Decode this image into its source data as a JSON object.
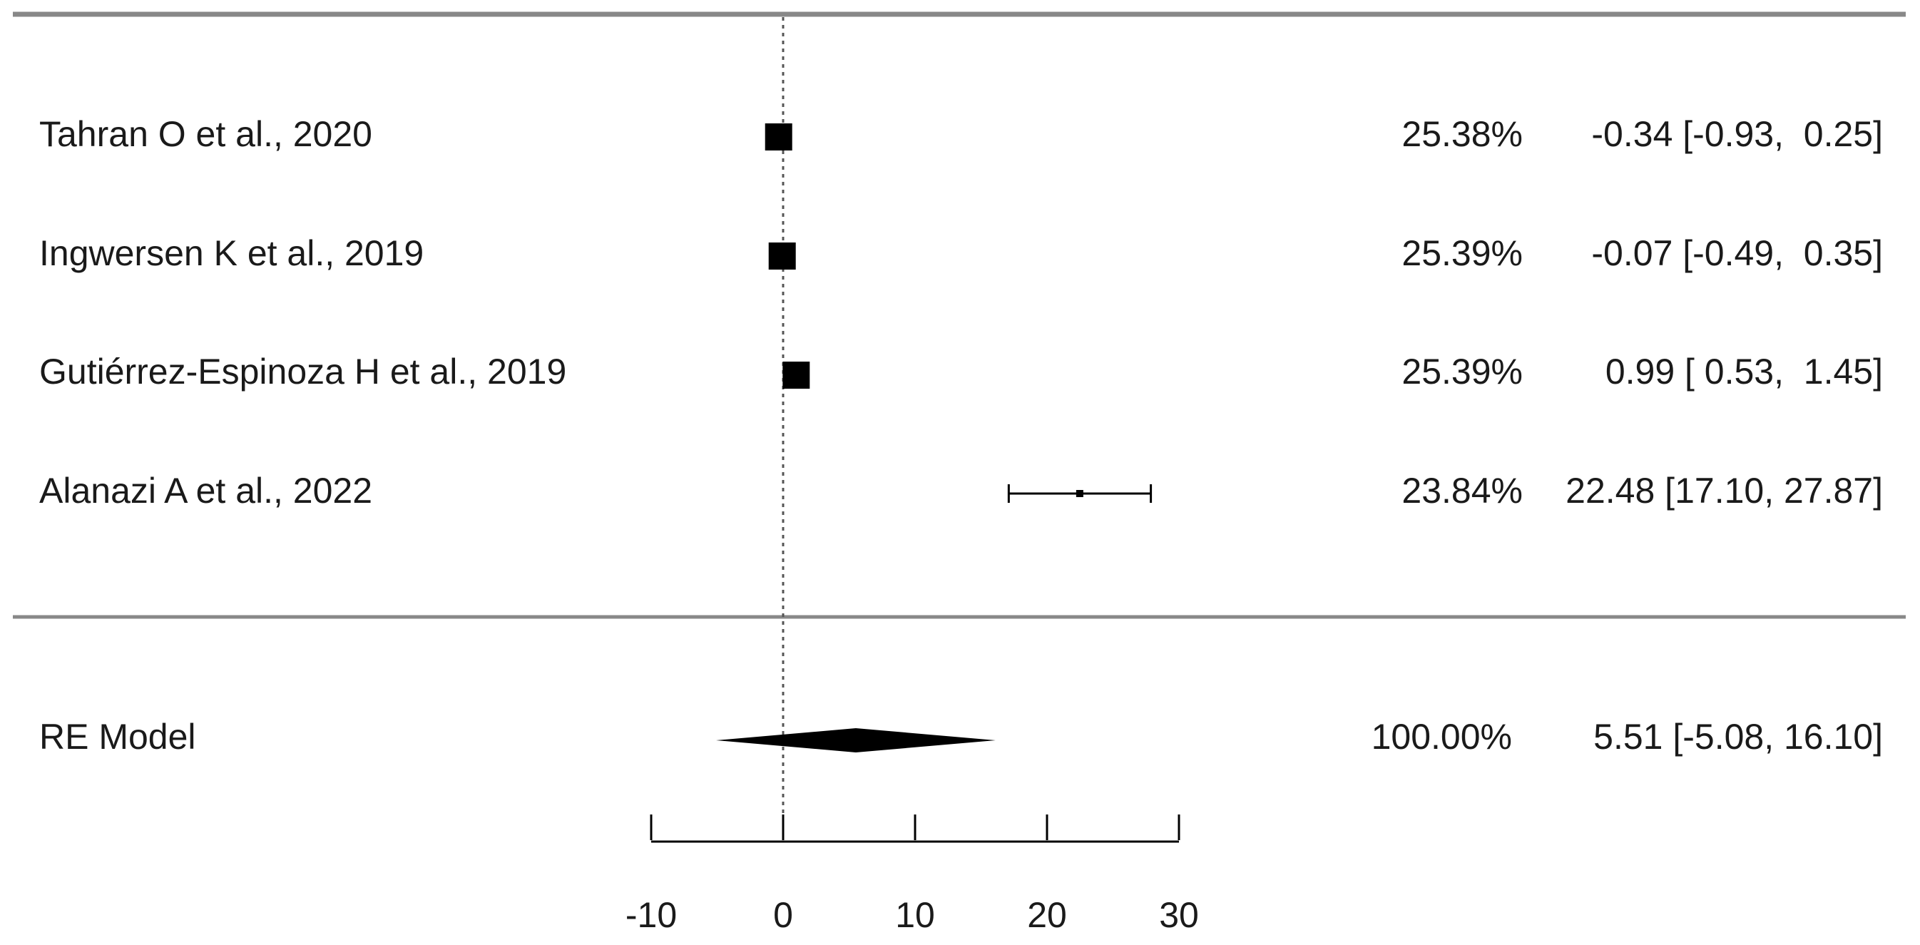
{
  "chart_data": {
    "type": "forest",
    "title": "",
    "xlabel": "",
    "ylabel": "",
    "xlim": [
      -10,
      30
    ],
    "x_ticks": [
      -10,
      0,
      10,
      20,
      30
    ],
    "x_tick_labels": [
      "-10",
      "0",
      "10",
      "20",
      "30"
    ],
    "reference_line": 0,
    "studies": [
      {
        "label": "Tahran O et al., 2020",
        "estimate": -0.34,
        "ci_low": -0.93,
        "ci_high": 0.25,
        "weight": 25.38,
        "weight_text": "25.38%",
        "ci_text": "-0.34 [-0.93,  0.25]"
      },
      {
        "label": "Ingwersen K et al., 2019",
        "estimate": -0.07,
        "ci_low": -0.49,
        "ci_high": 0.35,
        "weight": 25.39,
        "weight_text": "25.39%",
        "ci_text": "-0.07 [-0.49,  0.35]"
      },
      {
        "label": "Gutiérrez-Espinoza H et al., 2019",
        "estimate": 0.99,
        "ci_low": 0.53,
        "ci_high": 1.45,
        "weight": 25.39,
        "weight_text": "25.39%",
        "ci_text": "0.99 [ 0.53,  1.45]"
      },
      {
        "label": "Alanazi A et al., 2022",
        "estimate": 22.48,
        "ci_low": 17.1,
        "ci_high": 27.87,
        "weight": 23.84,
        "weight_text": "23.84%",
        "ci_text": "22.48 [17.10, 27.87]"
      }
    ],
    "summary": {
      "label": "RE Model",
      "estimate": 5.51,
      "ci_low": -5.08,
      "ci_high": 16.1,
      "weight": 100.0,
      "weight_text": "100.00%",
      "ci_text": "5.51 [-5.08, 16.10]"
    }
  }
}
